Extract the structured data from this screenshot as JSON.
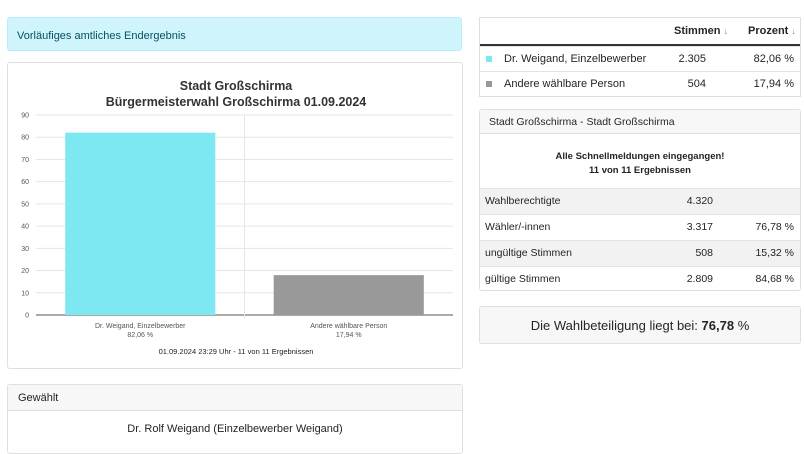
{
  "alert": {
    "text": "Vorläufiges amtliches Endergebnis"
  },
  "results_table": {
    "col_stimmen": "Stimmen",
    "col_prozent": "Prozent",
    "sort_icon": "↓",
    "rows": [
      {
        "name": "Dr. Weigand, Einzelbewerber",
        "stimmen": "2.305",
        "prozent": "82,06 %",
        "color": "#7de8f2"
      },
      {
        "name": "Andere wählbare Person",
        "stimmen": "504",
        "prozent": "17,94 %",
        "color": "#999999"
      }
    ]
  },
  "stats": {
    "header": "Stadt Großschirma - Stadt Großschirma",
    "message_line1": "Alle Schnellmeldungen eingegangen!",
    "message_line2": "11 von 11 Ergebnissen",
    "rows": [
      {
        "label": "Wahlberechtigte",
        "value": "4.320",
        "percent": ""
      },
      {
        "label": "Wähler/-innen",
        "value": "3.317",
        "percent": "76,78 %"
      },
      {
        "label": "ungültige Stimmen",
        "value": "508",
        "percent": "15,32 %"
      },
      {
        "label": "gültige Stimmen",
        "value": "2.809",
        "percent": "84,68 %"
      }
    ]
  },
  "turnout": {
    "prefix": "Die Wahlbeteiligung liegt bei:",
    "value": "76,78",
    "unit": "%"
  },
  "gewaehlt": {
    "header": "Gewählt",
    "name": "Dr. Rolf Weigand (Einzelbewerber Weigand)"
  },
  "chart_data": {
    "type": "bar",
    "title": "Stadt Großschirma",
    "subtitle": "Bürgermeisterwahl Großschirma 01.09.2024",
    "categories": [
      "Dr. Weigand, Einzelbewerber",
      "Andere wählbare Person"
    ],
    "category_percent_labels": [
      "82,06 %",
      "17,94 %"
    ],
    "values": [
      82.06,
      17.94
    ],
    "colors": [
      "#7de8f2",
      "#999999"
    ],
    "ylim": [
      0,
      90
    ],
    "yticks": [
      0,
      10,
      20,
      30,
      40,
      50,
      60,
      70,
      80,
      90
    ],
    "grid": true,
    "footer": "01.09.2024 23:29 Uhr - 11 von 11 Ergebnissen"
  }
}
